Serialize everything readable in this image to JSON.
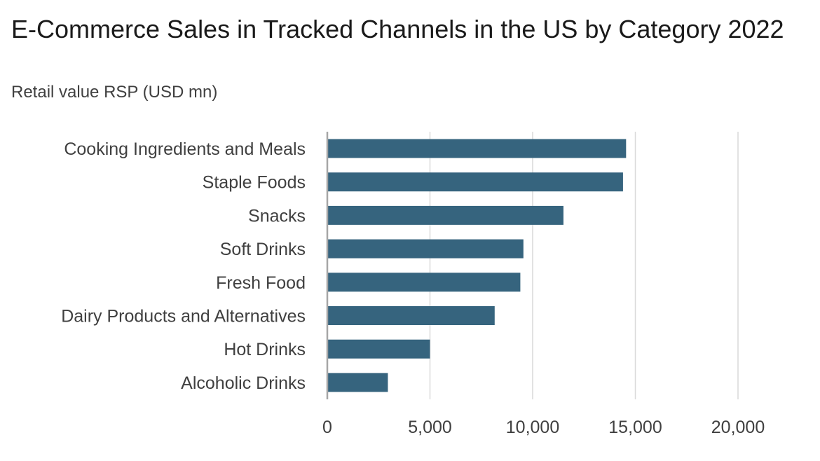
{
  "chart_data": {
    "type": "bar",
    "orientation": "horizontal",
    "title": "E-Commerce Sales in Tracked Channels in the US by Category 2022",
    "subtitle": "Retail value RSP (USD mn)",
    "categories": [
      "Cooking Ingredients and Meals",
      "Staple Foods",
      "Snacks",
      "Soft Drinks",
      "Fresh Food",
      "Dairy Products and Alternatives",
      "Hot Drinks",
      "Alcoholic Drinks"
    ],
    "values": [
      14550,
      14400,
      11500,
      9550,
      9400,
      8150,
      5000,
      2950
    ],
    "xlim": [
      0,
      20000
    ],
    "xticks": [
      0,
      5000,
      10000,
      15000,
      20000
    ],
    "xtick_labels": [
      "0",
      "5,000",
      "10,000",
      "15,000",
      "20,000"
    ],
    "grid": true,
    "legend": "none",
    "bar_color": "#36647e"
  }
}
